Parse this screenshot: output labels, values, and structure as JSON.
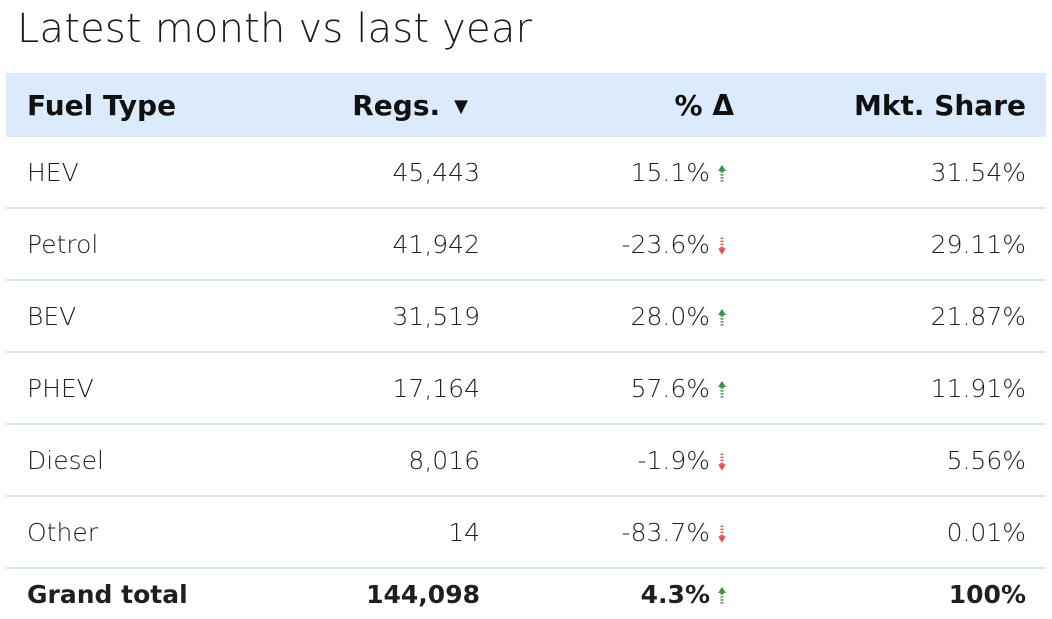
{
  "title": "Latest month vs last year",
  "colors": {
    "header_bg": "#dcebfb",
    "row_divider": "#d7e8f7",
    "up": "#3f8f3f",
    "down": "#e0584f"
  },
  "icons": {
    "sort": "sort-down-triangle-icon",
    "up": "arrow-up-icon",
    "down": "arrow-down-icon"
  },
  "chart_data": {
    "type": "table",
    "columns": [
      "Fuel Type",
      "Regs.",
      "% Δ",
      "Mkt. Share"
    ],
    "header": {
      "fuel_type": "Fuel Type",
      "regs": "Regs.",
      "sort_glyph": "▼",
      "pct_delta": "% Δ",
      "mkt_share": "Mkt. Share"
    },
    "rows": [
      {
        "fuel_type": "HEV",
        "regs": "45,443",
        "pct_delta": "15.1%",
        "direction": "up",
        "mkt_share": "31.54%"
      },
      {
        "fuel_type": "Petrol",
        "regs": "41,942",
        "pct_delta": "-23.6%",
        "direction": "down",
        "mkt_share": "29.11%"
      },
      {
        "fuel_type": "BEV",
        "regs": "31,519",
        "pct_delta": "28.0%",
        "direction": "up",
        "mkt_share": "21.87%"
      },
      {
        "fuel_type": "PHEV",
        "regs": "17,164",
        "pct_delta": "57.6%",
        "direction": "up",
        "mkt_share": "11.91%"
      },
      {
        "fuel_type": "Diesel",
        "regs": "8,016",
        "pct_delta": "-1.9%",
        "direction": "down",
        "mkt_share": "5.56%"
      },
      {
        "fuel_type": "Other",
        "regs": "14",
        "pct_delta": "-83.7%",
        "direction": "down",
        "mkt_share": "0.01%"
      }
    ],
    "total": {
      "fuel_type": "Grand total",
      "regs": "144,098",
      "pct_delta": "4.3%",
      "direction": "up",
      "mkt_share": "100%"
    }
  }
}
